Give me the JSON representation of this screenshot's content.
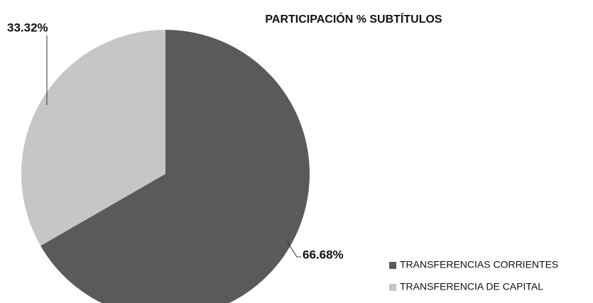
{
  "chart_data": {
    "type": "pie",
    "title": "PARTICIPACIÓN % SUBTÍTULOS",
    "categories": [
      "TRANSFERENCIAS CORRIENTES",
      "TRANSFERENCIA DE CAPITAL"
    ],
    "values": [
      66.68,
      33.32
    ],
    "value_labels": [
      "66.68%",
      "33.32%"
    ],
    "colors": [
      "#5a5a5a",
      "#c6c6c6"
    ],
    "legend": "right"
  }
}
